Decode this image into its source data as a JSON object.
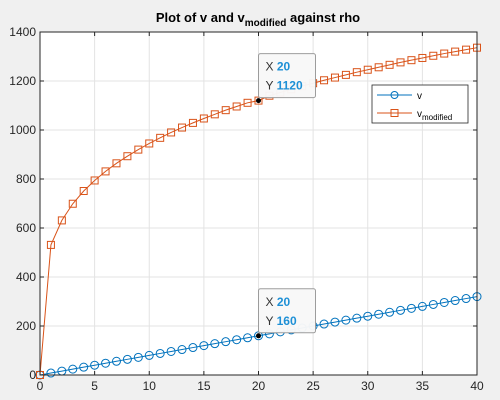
{
  "chart_data": {
    "type": "line",
    "title": "Plot of v and v",
    "title_subscript": "modified",
    "title_suffix": " against rho",
    "xlim": [
      0,
      40
    ],
    "ylim": [
      0,
      1400
    ],
    "x_ticks": [
      0,
      5,
      10,
      15,
      20,
      25,
      30,
      35,
      40
    ],
    "y_ticks": [
      0,
      200,
      400,
      600,
      800,
      1000,
      1200,
      1400
    ],
    "grid": true,
    "legend_position": "right",
    "series": [
      {
        "name": "v",
        "name_subscript": "",
        "marker": "circle",
        "color": "#0072bd",
        "x": [
          0,
          1,
          2,
          3,
          4,
          5,
          6,
          7,
          8,
          9,
          10,
          11,
          12,
          13,
          14,
          15,
          16,
          17,
          18,
          19,
          20,
          21,
          22,
          23,
          24,
          25,
          26,
          27,
          28,
          29,
          30,
          31,
          32,
          33,
          34,
          35,
          36,
          37,
          38,
          39,
          40
        ],
        "y": [
          0,
          8,
          16,
          24,
          32,
          40,
          48,
          56,
          64,
          72,
          80,
          88,
          96,
          104,
          112,
          120,
          128,
          136,
          144,
          152,
          160,
          168,
          176,
          184,
          192,
          200,
          208,
          216,
          224,
          232,
          240,
          248,
          256,
          264,
          272,
          280,
          288,
          296,
          304,
          312,
          320
        ]
      },
      {
        "name": "v",
        "name_subscript": "modified",
        "marker": "square",
        "color": "#d95319",
        "x": [
          0,
          1,
          2,
          3,
          4,
          5,
          6,
          7,
          8,
          9,
          10,
          11,
          12,
          13,
          14,
          15,
          16,
          17,
          18,
          19,
          20,
          21,
          22,
          23,
          24,
          25,
          26,
          27,
          28,
          29,
          30,
          31,
          32,
          33,
          34,
          35,
          36,
          37,
          38,
          39,
          40
        ],
        "y": [
          0,
          531,
          631,
          699,
          751,
          794,
          831,
          864,
          893,
          920,
          945,
          968,
          990,
          1010,
          1029,
          1047,
          1064,
          1081,
          1096,
          1111,
          1120,
          1140,
          1153,
          1166,
          1179,
          1191,
          1203,
          1214,
          1225,
          1236,
          1246,
          1256,
          1266,
          1276,
          1285,
          1294,
          1303,
          1312,
          1320,
          1328,
          1336
        ]
      }
    ],
    "datatips": [
      {
        "x_label": "X",
        "y_label": "Y",
        "x": 20,
        "y": 1120
      },
      {
        "x_label": "X",
        "y_label": "Y",
        "x": 20,
        "y": 160
      }
    ]
  }
}
